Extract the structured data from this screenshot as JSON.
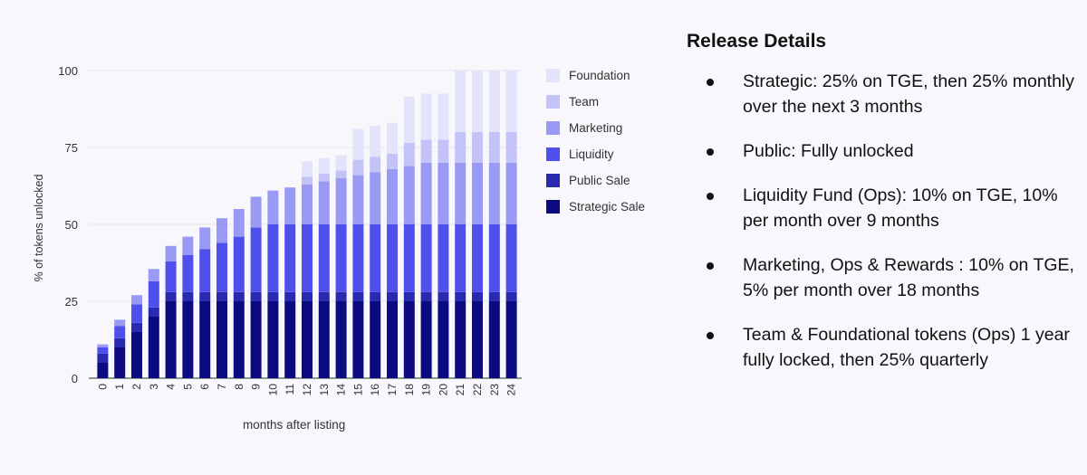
{
  "chart_data": {
    "type": "bar",
    "stacked": true,
    "xlabel": "months after listing",
    "ylabel": "% of tokens unlocked",
    "ylim": [
      0,
      100
    ],
    "yticks": [
      0,
      25,
      50,
      75,
      100
    ],
    "categories": [
      "0",
      "1",
      "2",
      "3",
      "4",
      "5",
      "6",
      "7",
      "8",
      "9",
      "10",
      "11",
      "12",
      "13",
      "14",
      "15",
      "16",
      "17",
      "18",
      "19",
      "20",
      "21",
      "22",
      "23",
      "24"
    ],
    "legend_position": "right",
    "series": [
      {
        "name": "Strategic Sale",
        "color": "#0b0a7e",
        "values": [
          5,
          10,
          15,
          20,
          25,
          25,
          25,
          25,
          25,
          25,
          25,
          25,
          25,
          25,
          25,
          25,
          25,
          25,
          25,
          25,
          25,
          25,
          25,
          25,
          25
        ]
      },
      {
        "name": "Public Sale",
        "color": "#2a2ab0",
        "values": [
          3,
          3,
          3,
          3,
          3,
          3,
          3,
          3,
          3,
          3,
          3,
          3,
          3,
          3,
          3,
          3,
          3,
          3,
          3,
          3,
          3,
          3,
          3,
          3,
          3
        ]
      },
      {
        "name": "Liquidity",
        "color": "#4f4fec",
        "values": [
          2,
          4,
          6,
          8.5,
          10,
          12,
          14,
          16,
          18,
          21,
          22,
          22,
          22,
          22,
          22,
          22,
          22,
          22,
          22,
          22,
          22,
          22,
          22,
          22,
          22
        ]
      },
      {
        "name": "Marketing",
        "color": "#9a9af4",
        "values": [
          1,
          2,
          3,
          4,
          5,
          6,
          7,
          8,
          9,
          10,
          11,
          12,
          13,
          14,
          15,
          16,
          17,
          18,
          19,
          20,
          20,
          20,
          20,
          20,
          20
        ]
      },
      {
        "name": "Team",
        "color": "#c3c3f8",
        "values": [
          0,
          0,
          0,
          0,
          0,
          0,
          0,
          0,
          0,
          0,
          0,
          0,
          2.5,
          2.5,
          2.5,
          5,
          5,
          5,
          7.5,
          7.5,
          7.5,
          10,
          10,
          10,
          10
        ]
      },
      {
        "name": "Foundation",
        "color": "#e3e3fb",
        "values": [
          0,
          0,
          0,
          0,
          0,
          0,
          0,
          0,
          0,
          0,
          0,
          0,
          5,
          5,
          5,
          10,
          10,
          10,
          15,
          15,
          15,
          20,
          20,
          20,
          20
        ]
      }
    ]
  },
  "details": {
    "title": "Release Details",
    "items": [
      "Strategic: 25% on TGE, then 25% monthly over the next 3 months",
      "Public: Fully unlocked",
      "Liquidity Fund (Ops): 10% on TGE, 10% per month over 9 months",
      "Marketing, Ops & Rewards : 10% on TGE, 5% per month over 18 months",
      "Team & Foundational tokens (Ops) 1 year fully locked, then 25% quarterly"
    ]
  }
}
